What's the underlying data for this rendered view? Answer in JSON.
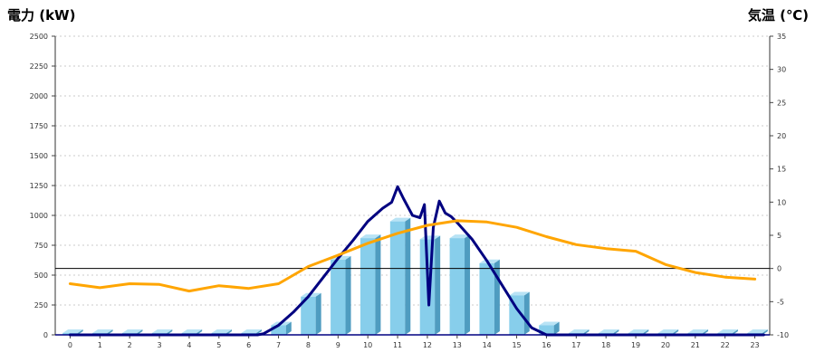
{
  "chart_data": {
    "type": "bar",
    "categories": [
      "0",
      "1",
      "2",
      "3",
      "4",
      "5",
      "6",
      "7",
      "8",
      "9",
      "10",
      "11",
      "12",
      "13",
      "14",
      "15",
      "16",
      "17",
      "18",
      "19",
      "20",
      "21",
      "22",
      "23"
    ],
    "left_axis": {
      "title": "電力 (kW)",
      "color": "#1a6fb5",
      "ylim": [
        0,
        2500
      ],
      "ticks": [
        "0",
        "250",
        "500",
        "750",
        "1000",
        "1250",
        "1500",
        "1750",
        "2000",
        "2250",
        "2500"
      ]
    },
    "right_axis": {
      "title": "気温 (℃)",
      "color": "#f08c1e",
      "ylim": [
        -10,
        35
      ],
      "ticks": [
        "-10",
        "-5",
        "0",
        "5",
        "10",
        "15",
        "20",
        "25",
        "30",
        "35"
      ]
    },
    "series": [
      {
        "kind": "bar",
        "axis": "left",
        "color": "#87ceeb",
        "values": [
          15,
          15,
          15,
          15,
          15,
          15,
          15,
          80,
          320,
          630,
          810,
          950,
          800,
          810,
          600,
          330,
          80,
          15,
          15,
          15,
          15,
          15,
          15,
          15
        ]
      },
      {
        "kind": "line",
        "axis": "left",
        "color": "#000080",
        "x": [
          0,
          6.3,
          6.5,
          7,
          7.5,
          8,
          8.5,
          9,
          9.5,
          10,
          10.5,
          10.8,
          11,
          11.2,
          11.5,
          11.75,
          11.9,
          12.05,
          12.2,
          12.4,
          12.6,
          12.8,
          13,
          13.5,
          14,
          14.5,
          15,
          15.5,
          16,
          23.3
        ],
        "y": [
          0,
          0,
          10,
          80,
          190,
          320,
          480,
          640,
          790,
          950,
          1060,
          1110,
          1240,
          1140,
          1000,
          980,
          1090,
          250,
          900,
          1120,
          1020,
          990,
          940,
          800,
          620,
          420,
          220,
          60,
          0,
          0
        ]
      },
      {
        "kind": "line",
        "axis": "right",
        "color": "#ffa500",
        "x": [
          0,
          1,
          2,
          3,
          4,
          5,
          6,
          7,
          8,
          9,
          10,
          11,
          12,
          13,
          14,
          15,
          16,
          17,
          18,
          19,
          20,
          21,
          22,
          23
        ],
        "y": [
          -2.3,
          -2.9,
          -2.3,
          -2.4,
          -3.4,
          -2.6,
          -3.0,
          -2.3,
          0.3,
          2.0,
          3.8,
          5.3,
          6.5,
          7.2,
          7.0,
          6.2,
          4.8,
          3.6,
          3.0,
          2.6,
          0.6,
          -0.6,
          -1.3,
          -1.6
        ]
      }
    ],
    "reference_line": {
      "axis": "right",
      "value": 0,
      "color": "#000000"
    },
    "grid": true
  }
}
